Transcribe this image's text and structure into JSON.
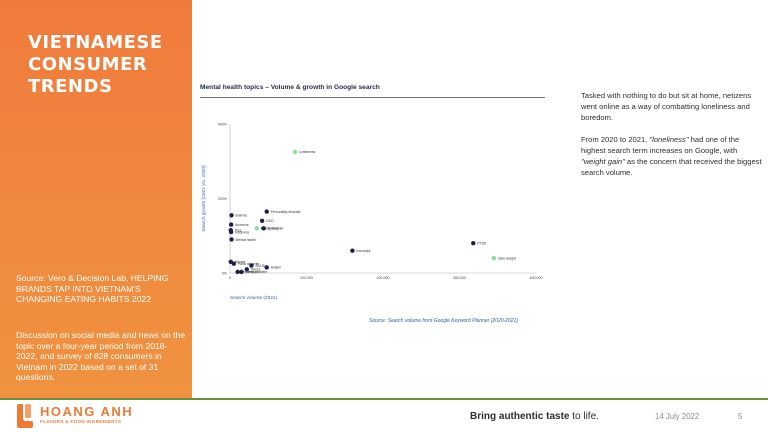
{
  "sidebar": {
    "title_lines": [
      "VIETNAMESE",
      "CONSUMER",
      "TRENDS"
    ],
    "source_text": "Source: Vero & Decision Lab, HELPING BRANDS TAP INTO VIETNAM'S CHANGING EATING HABITS 2022",
    "discussion_text": "Discussion on social media and news on the topic over a four-year period from 2018-2022, and survey of 828 consumers in Vietnam in 2022 based on a set of 31 questions."
  },
  "chart_title": "Mental health topics – Volume & growth in Google search",
  "chart_source": "Source: Search volume from Google Keyword Planner (2020-2021)",
  "chart_data": {
    "type": "scatter",
    "title": "Mental health topics – Volume & growth in Google search",
    "xlabel": "Search volume (2021)",
    "ylabel": "Search growth (2021 Vs. 2020)",
    "xlim": [
      0,
      400000
    ],
    "ylim": [
      0,
      400
    ],
    "x_ticks": [
      "0",
      "100,000",
      "200,000",
      "300,000",
      "400,000"
    ],
    "y_ticks": [
      "0%",
      "200%",
      "400%"
    ],
    "colors": {
      "default": "#1a1f4e",
      "highlight": "#7fe39a"
    },
    "points": [
      {
        "label": "Loneliness",
        "x": 85000,
        "y": 325,
        "highlight": true
      },
      {
        "label": "Weight gain",
        "x": 345000,
        "y": 40,
        "highlight": true
      },
      {
        "label": "Eating disorder",
        "x": 35000,
        "y": 120,
        "highlight": true
      },
      {
        "label": "PTSD",
        "x": 318000,
        "y": 80,
        "highlight": false
      },
      {
        "label": "Insomnia",
        "x": 160000,
        "y": 60,
        "highlight": false
      },
      {
        "label": "Personality disorder",
        "x": 48000,
        "y": 165,
        "highlight": false
      },
      {
        "label": "OCD",
        "x": 42000,
        "y": 140,
        "highlight": false
      },
      {
        "label": "Anxiety",
        "x": 44000,
        "y": 120,
        "highlight": false
      },
      {
        "label": "Bulimia",
        "x": 2000,
        "y": 155,
        "highlight": false
      },
      {
        "label": "Anorexia",
        "x": 1500,
        "y": 130,
        "highlight": false
      },
      {
        "label": "Pica",
        "x": 1000,
        "y": 115,
        "highlight": false
      },
      {
        "label": "Insomnia (lower)",
        "x": 1500,
        "y": 110,
        "highlight": false
      },
      {
        "label": "Mental health",
        "x": 2000,
        "y": 90,
        "highlight": false
      },
      {
        "label": "Bipolar",
        "x": 1000,
        "y": 30,
        "highlight": false
      },
      {
        "label": "Panic disorder",
        "x": 5000,
        "y": 25,
        "highlight": false
      },
      {
        "label": "ADHD",
        "x": 28000,
        "y": 20,
        "highlight": false
      },
      {
        "label": "Autism",
        "x": 48000,
        "y": 15,
        "highlight": false
      },
      {
        "label": "Stress",
        "x": 22000,
        "y": 10,
        "highlight": false
      },
      {
        "label": "Sleep problem",
        "x": 15000,
        "y": 3,
        "highlight": false
      },
      {
        "label": "Depression",
        "x": 10000,
        "y": 3,
        "highlight": false
      }
    ],
    "point_texts": {
      "Loneliness": "Loneliness",
      "Weight gain": "Gain weight",
      "Eating disorder": "Eating disorder",
      "PTSD": "PTSD",
      "Insomnia": "Insomnia",
      "Personality disorder": "Personality disorder",
      "OCD": "OCD",
      "Anxiety": "Anxiety",
      "Bulimia": "Bulimia",
      "Anorexia": "Anorexia",
      "Pica": "Pica",
      "Insomnia (lower)": "Insomnia",
      "Mental health": "Mental health",
      "Bipolar": "Bipolar",
      "Panic disorder": "Panic disorder",
      "ADHD": "ADHD",
      "Autism": "Autism",
      "Stress": "Stress",
      "Sleep problem": "Sleep problem",
      "Depression": "Depression"
    }
  },
  "commentary": {
    "p1": "Tasked with nothing to do but sit at home, netizens went online as a way of combatting loneliness and boredom.",
    "p2_before": "From 2020 to 2021, ",
    "p2_em1": "\"loneliness\"",
    "p2_middle": " had one of the highest search term increases on Google, with ",
    "p2_em2": "\"weight gain\"",
    "p2_after": " as the concern that received the biggest search volume."
  },
  "footer": {
    "brand_name": "HOANG ANH",
    "brand_sub": "FLAVORS & FOOD INGREDIENTS",
    "tagline_bold": "Bring authentic taste",
    "tagline_rest": " to life.",
    "date": "14 July 2022",
    "page_number": "5",
    "accent_color": "#ee7a35",
    "rule_color": "#6c8e3a"
  }
}
